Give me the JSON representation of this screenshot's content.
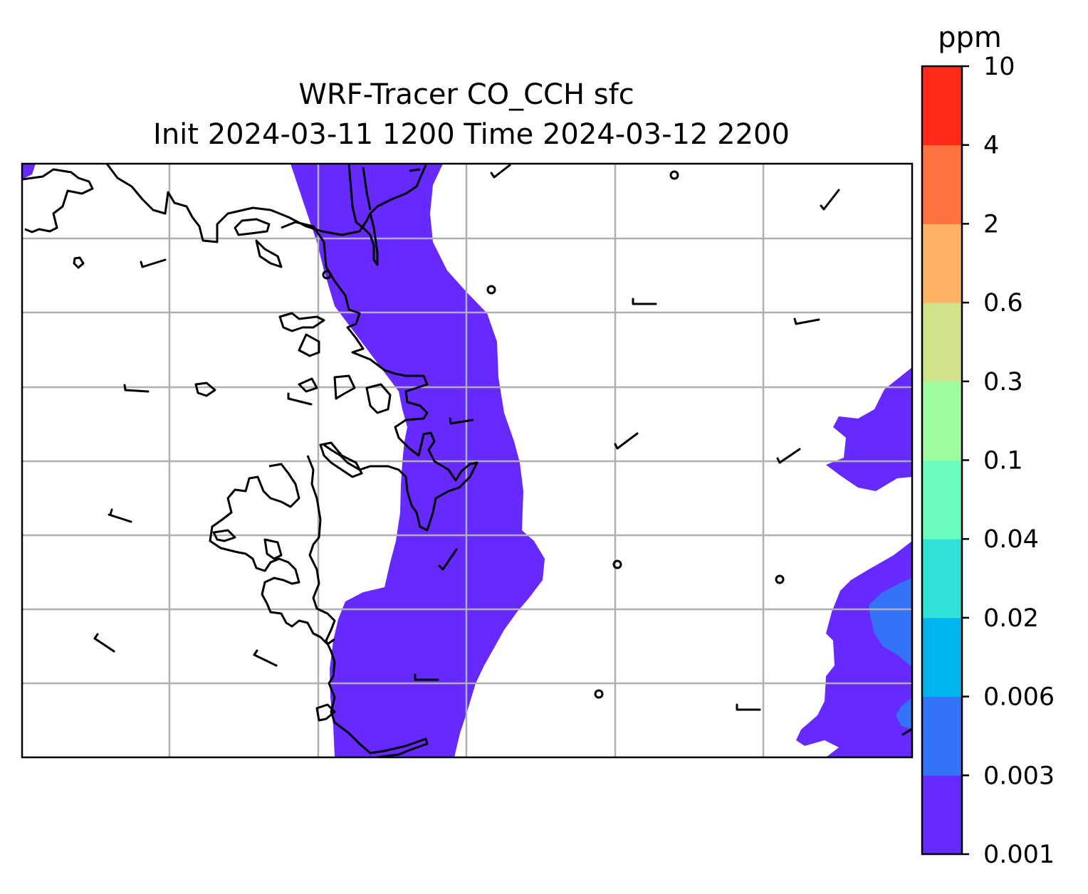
{
  "title": {
    "line1": "WRF-Tracer CO_CCH sfc",
    "line2": "Init 2024-03-11 1200 Time 2024-03-12 2200"
  },
  "colorbar": {
    "unit": "ppm",
    "levels": [
      "0.001",
      "0.003",
      "0.006",
      "0.02",
      "0.04",
      "0.1",
      "0.3",
      "0.6",
      "2",
      "4",
      "10"
    ],
    "colors": [
      "#6629ff",
      "#3373f7",
      "#00b4ee",
      "#31e0d6",
      "#69fdbf",
      "#9dfd9f",
      "#d0e28a",
      "#ffb263",
      "#ff7240",
      "#ff2a1a"
    ]
  },
  "chart_data": {
    "type": "map",
    "field": "CO_CCH surface tracer concentration",
    "units": "ppm",
    "grid": true,
    "legend": "right colorbar",
    "contour_levels": [
      0.001,
      0.003,
      0.006,
      0.02,
      0.04,
      0.1,
      0.3,
      0.6,
      2,
      4,
      10
    ],
    "filled_regions": [
      {
        "level_range": [
          0.001,
          0.003
        ],
        "color": "#6629ff",
        "location": "north-south band center-left of map"
      },
      {
        "level_range": [
          0.001,
          0.003
        ],
        "color": "#6629ff",
        "location": "east edge patches"
      },
      {
        "level_range": [
          0.003,
          0.006
        ],
        "color": "#3373f7",
        "location": "southeast edge"
      }
    ],
    "overlays": [
      "coastlines",
      "wind barbs",
      "calm-wind circles"
    ]
  }
}
